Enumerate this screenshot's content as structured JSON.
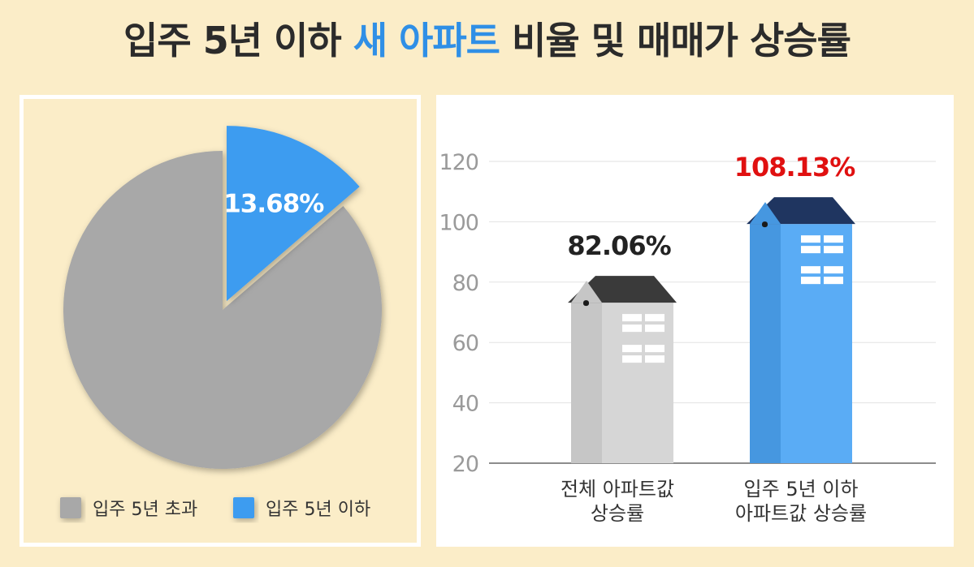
{
  "title": {
    "part1": "입주 5년 이하 ",
    "highlight": "새 아파트",
    "part2": " 비율 및 매매가 상승률"
  },
  "colors": {
    "background": "#fbedc8",
    "highlight": "#2f8fe6",
    "pie_gray": "#a8a8a8",
    "pie_blue": "#3d9cf0",
    "bar_gray": "#d6d6d6",
    "bar_blue": "#5aacf5",
    "roof_gray": "#3a3a3a",
    "roof_blue": "#1f3560",
    "label_red": "#e01010"
  },
  "chart_data": [
    {
      "type": "pie",
      "slices": [
        {
          "name": "입주 5년 초과",
          "value": 86.32,
          "color": "#a8a8a8"
        },
        {
          "name": "입주 5년 이하",
          "value": 13.68,
          "color": "#3d9cf0",
          "label": "13.68%"
        }
      ],
      "legend": [
        "입주 5년 초과",
        "입주 5년 이하"
      ]
    },
    {
      "type": "bar",
      "categories": [
        [
          "전체 아파트값",
          "상승률"
        ],
        [
          "입주 5년 이하",
          "아파트값 상승률"
        ]
      ],
      "values": [
        82.06,
        108.13
      ],
      "value_labels": [
        "82.06%",
        "108.13%"
      ],
      "ylim": [
        20,
        120
      ],
      "yticks": [
        20,
        40,
        60,
        80,
        100,
        120
      ],
      "grid": true
    }
  ]
}
